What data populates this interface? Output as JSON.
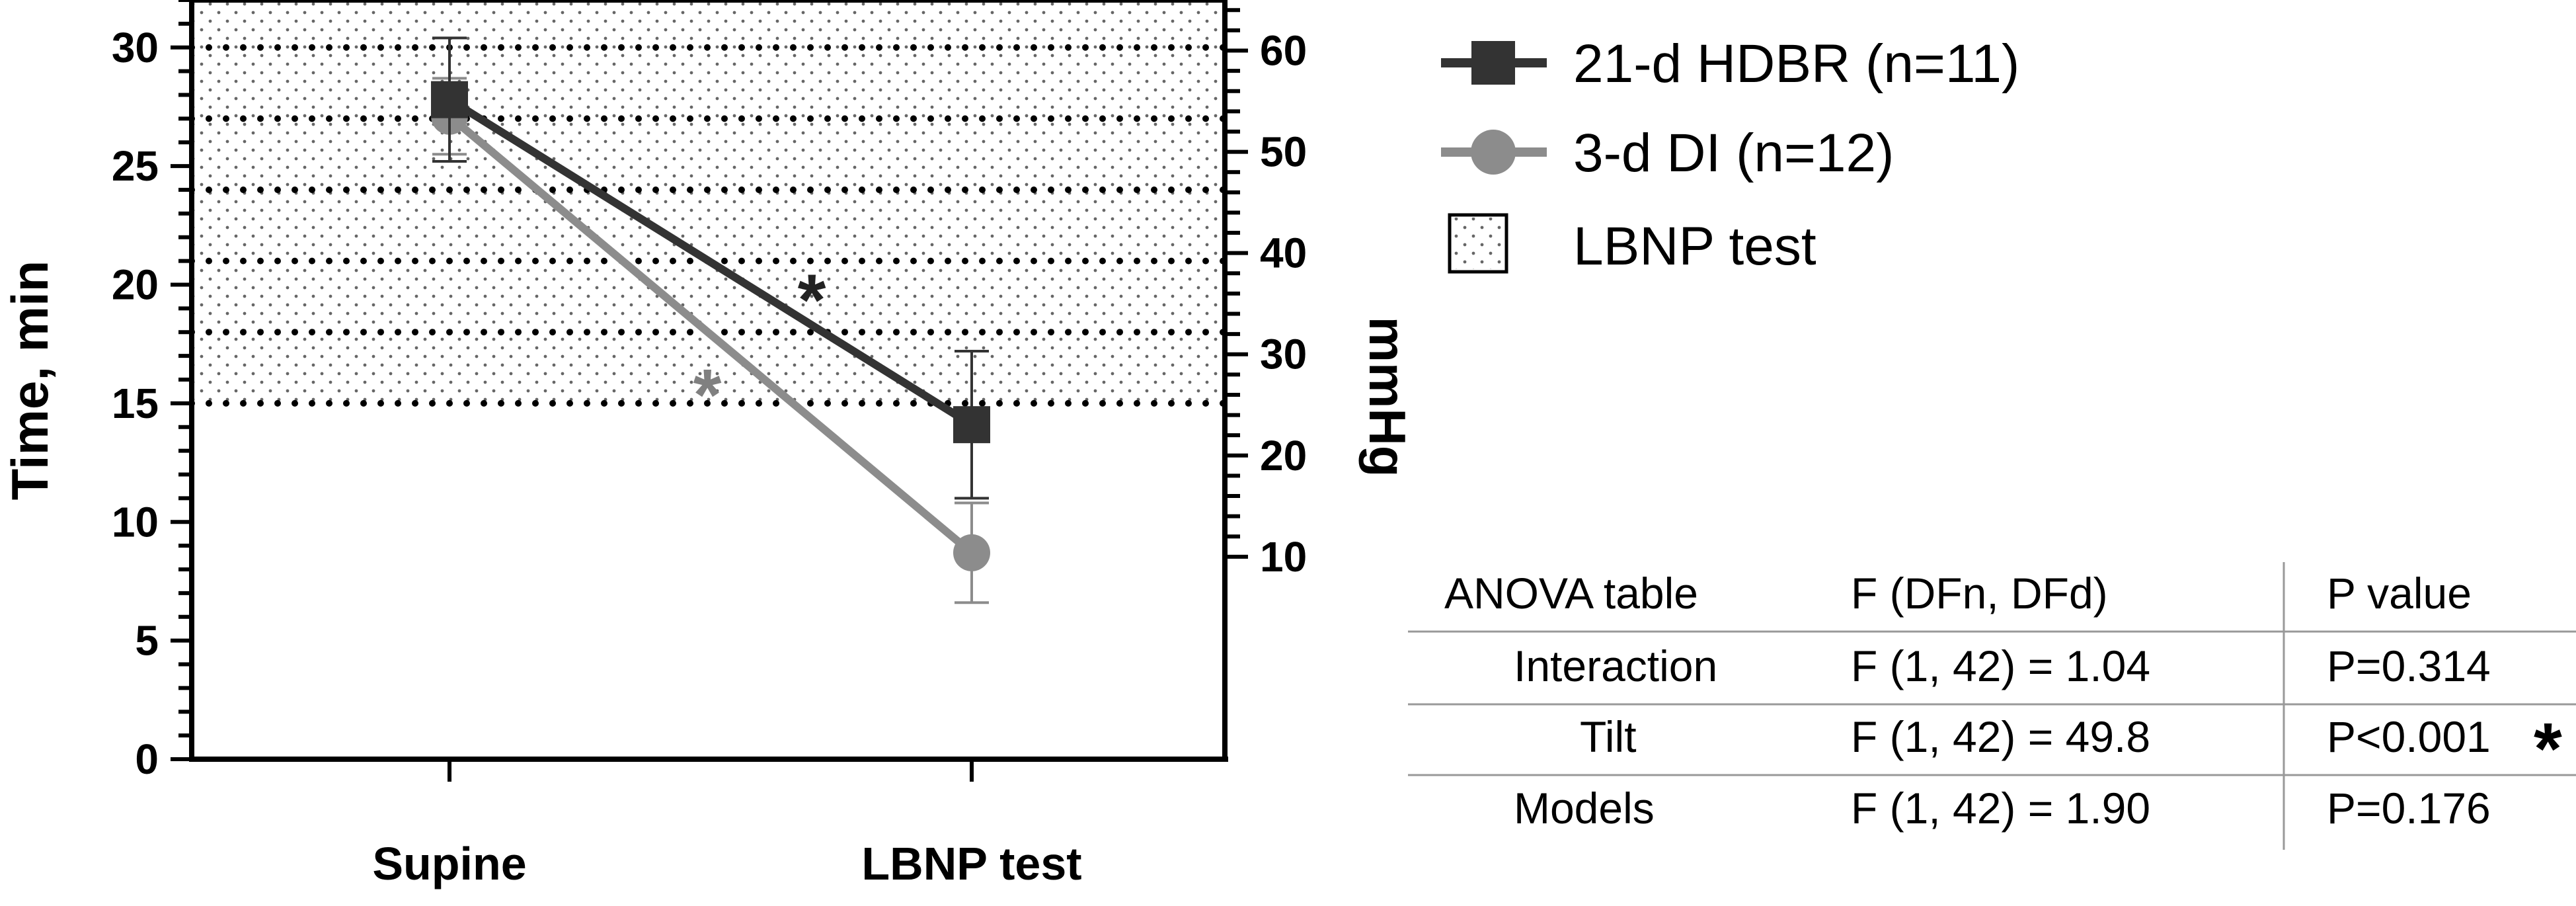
{
  "chart_data": {
    "type": "line",
    "categories": [
      "Supine",
      "LBNP test"
    ],
    "ylabel": "Time, min",
    "ylabel_right": "mmHg",
    "ylim": [
      0,
      32
    ],
    "yticks": [
      0,
      5,
      10,
      15,
      20,
      25,
      30
    ],
    "y2lim": [
      -10,
      65
    ],
    "y2ticks": [
      10,
      20,
      30,
      40,
      50,
      60
    ],
    "series": [
      {
        "name": "21-d HDBR (n=11)",
        "values": [
          27.8,
          14.1
        ],
        "errors": [
          2.6,
          3.1
        ],
        "marker": "square",
        "color": "#333333",
        "annotation": "*"
      },
      {
        "name": "3-d DI (n=12)",
        "values": [
          27.1,
          8.7
        ],
        "errors": [
          1.6,
          2.1
        ],
        "marker": "circle",
        "color": "#8c8c8c",
        "annotation": "*"
      }
    ],
    "shaded_region": {
      "name": "LBNP test",
      "y_from": 15,
      "y_to": 32
    },
    "dotted_gridlines_time": [
      15,
      18,
      21,
      24,
      27,
      30
    ],
    "legend_position": "top-right",
    "anova_table": {
      "headers": [
        "ANOVA table",
        "F (DFn, DFd)",
        "P value"
      ],
      "rows": [
        {
          "label": "Interaction",
          "f": "F (1, 42) = 1.04",
          "p": "P=0.314",
          "star": ""
        },
        {
          "label": "Tilt",
          "f": "F (1, 42) = 49.8",
          "p": "P<0.001",
          "star": "*"
        },
        {
          "label": "Models",
          "f": "F (1, 42) = 1.90",
          "p": "P=0.176",
          "star": ""
        }
      ]
    }
  }
}
